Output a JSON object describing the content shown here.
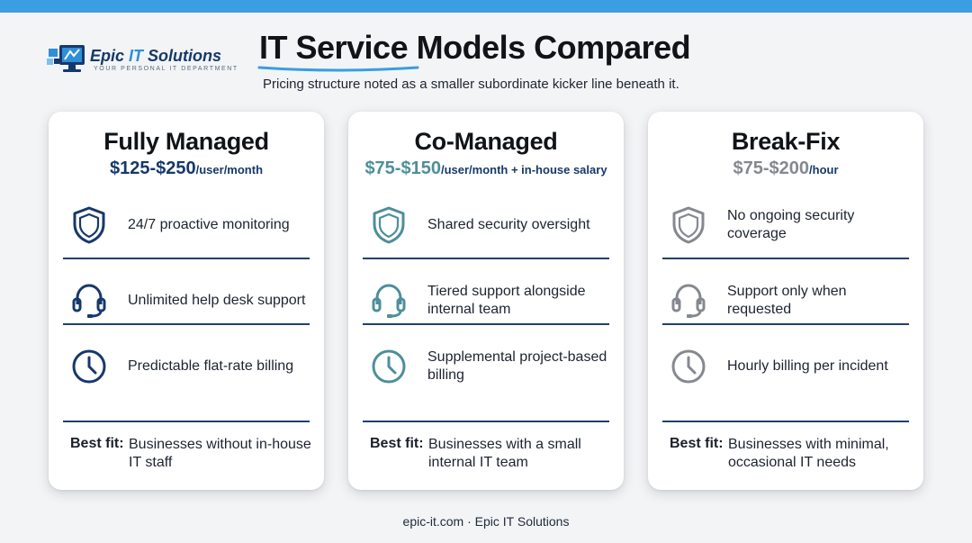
{
  "header": {
    "logo_name_prefix": "Epic ",
    "logo_name_it": "IT",
    "logo_name_suffix": " Solutions",
    "logo_tagline": "YOUR PERSONAL IT DEPARTMENT",
    "title": "IT Service Models Compared",
    "subtitle": "Pricing structure noted as a smaller subordinate kicker line beneath it."
  },
  "colors": {
    "accent_blue": "#3a9ee0",
    "navy": "#16396b",
    "teal": "#4d8f9b",
    "gray": "#85898f",
    "divider": "#21406e"
  },
  "cards": [
    {
      "title": "Fully Managed",
      "price_amount": "$125-$250",
      "price_unit": "/user/month",
      "features": [
        {
          "icon": "shield-icon",
          "text": "24/7 proactive monitoring"
        },
        {
          "icon": "headset-icon",
          "text": "Unlimited help desk support"
        },
        {
          "icon": "clock-icon",
          "text": "Predictable flat-rate billing"
        }
      ],
      "best_fit_label": "Best fit:",
      "best_fit_text": "Businesses without in-house IT staff"
    },
    {
      "title": "Co-Managed",
      "price_amount": "$75-$150",
      "price_unit": "/user/month + in-house salary",
      "features": [
        {
          "icon": "shield-icon",
          "text": "Shared security oversight"
        },
        {
          "icon": "headset-icon",
          "text": "Tiered support alongside internal team"
        },
        {
          "icon": "clock-icon",
          "text": "Supplemental project-based billing"
        }
      ],
      "best_fit_label": "Best fit:",
      "best_fit_text": "Businesses with a small internal IT team"
    },
    {
      "title": "Break-Fix",
      "price_amount": "$75-$200",
      "price_unit": "/hour",
      "features": [
        {
          "icon": "shield-icon",
          "text": "No ongoing security coverage"
        },
        {
          "icon": "headset-icon",
          "text": "Support only when requested"
        },
        {
          "icon": "clock-icon",
          "text": "Hourly billing per incident"
        }
      ],
      "best_fit_label": "Best fit:",
      "best_fit_text": "Businesses with minimal, occasional IT needs"
    }
  ],
  "footer": {
    "text": "epic-it.com · Epic IT Solutions"
  }
}
